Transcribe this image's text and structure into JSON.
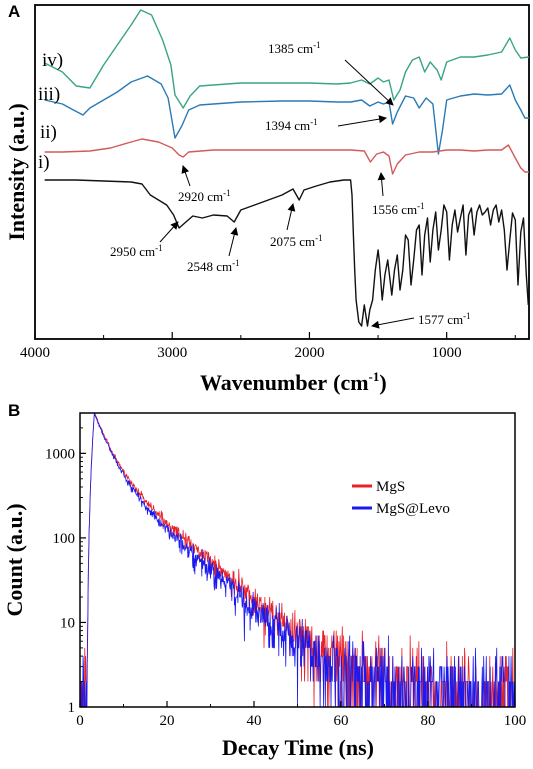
{
  "chart_data": [
    {
      "panel": "A",
      "type": "line",
      "xlabel": "Wavenumber",
      "xlabel_unit": "(cm",
      "xlabel_unit_sup": "-1",
      "xlabel_unit_end": ")",
      "ylabel": "Intensity (a.u.)",
      "xlim": [
        4000,
        400
      ],
      "x_reversed": true,
      "xticks": [
        4000,
        3000,
        2000,
        1000
      ],
      "grid": false,
      "series_labels": [
        "iv)",
        "iii)",
        "ii)",
        "i)"
      ],
      "series": [
        {
          "label": "iv)",
          "color": "#3aa389",
          "points": [
            [
              3930,
              63
            ],
            [
              3800,
              72
            ],
            [
              3700,
              86
            ],
            [
              3600,
              88
            ],
            [
              3500,
              65
            ],
            [
              3400,
              45
            ],
            [
              3300,
              25
            ],
            [
              3230,
              10
            ],
            [
              3150,
              15
            ],
            [
              3070,
              40
            ],
            [
              3010,
              65
            ],
            [
              2980,
              95
            ],
            [
              2920,
              108
            ],
            [
              2870,
              96
            ],
            [
              2800,
              86
            ],
            [
              2500,
              83
            ],
            [
              2200,
              83
            ],
            [
              2000,
              83
            ],
            [
              1800,
              84
            ],
            [
              1700,
              83
            ],
            [
              1620,
              80
            ],
            [
              1560,
              84
            ],
            [
              1500,
              78
            ],
            [
              1460,
              82
            ],
            [
              1420,
              80
            ],
            [
              1385,
              100
            ],
            [
              1340,
              90
            ],
            [
              1300,
              72
            ],
            [
              1250,
              60
            ],
            [
              1200,
              57
            ],
            [
              1160,
              72
            ],
            [
              1120,
              62
            ],
            [
              1070,
              70
            ],
            [
              1040,
              80
            ],
            [
              1000,
              62
            ],
            [
              900,
              57
            ],
            [
              800,
              57
            ],
            [
              700,
              55
            ],
            [
              600,
              52
            ],
            [
              540,
              38
            ],
            [
              500,
              50
            ],
            [
              460,
              58
            ],
            [
              400,
              57
            ]
          ]
        },
        {
          "label": "iii)",
          "color": "#2a7ab6",
          "points": [
            [
              3930,
              100
            ],
            [
              3800,
              104
            ],
            [
              3720,
              110
            ],
            [
              3650,
              115
            ],
            [
              3600,
              108
            ],
            [
              3500,
              100
            ],
            [
              3400,
              92
            ],
            [
              3300,
              82
            ],
            [
              3180,
              76
            ],
            [
              3080,
              84
            ],
            [
              3030,
              98
            ],
            [
              2980,
              138
            ],
            [
              2930,
              126
            ],
            [
              2880,
              110
            ],
            [
              2800,
              105
            ],
            [
              2500,
              102
            ],
            [
              2200,
              101
            ],
            [
              2000,
              101
            ],
            [
              1800,
              102
            ],
            [
              1700,
              102
            ],
            [
              1620,
              100
            ],
            [
              1560,
              106
            ],
            [
              1500,
              102
            ],
            [
              1460,
              104
            ],
            [
              1420,
              102
            ],
            [
              1394,
              124
            ],
            [
              1360,
              112
            ],
            [
              1300,
              96
            ],
            [
              1240,
              98
            ],
            [
              1200,
              108
            ],
            [
              1150,
              98
            ],
            [
              1100,
              104
            ],
            [
              1060,
              154
            ],
            [
              1030,
              130
            ],
            [
              1000,
              100
            ],
            [
              900,
              96
            ],
            [
              800,
              94
            ],
            [
              700,
              95
            ],
            [
              600,
              94
            ],
            [
              540,
              85
            ],
            [
              500,
              100
            ],
            [
              460,
              110
            ],
            [
              430,
              118
            ],
            [
              400,
              118
            ]
          ]
        },
        {
          "label": "ii)",
          "color": "#d35a5a",
          "points": [
            [
              3930,
              152
            ],
            [
              3800,
              152
            ],
            [
              3600,
              151
            ],
            [
              3450,
              148
            ],
            [
              3300,
              142
            ],
            [
              3220,
              139
            ],
            [
              3100,
              142
            ],
            [
              3000,
              148
            ],
            [
              2950,
              155
            ],
            [
              2920,
              157
            ],
            [
              2880,
              152
            ],
            [
              2700,
              150
            ],
            [
              2400,
              150
            ],
            [
              2100,
              150
            ],
            [
              1900,
              150
            ],
            [
              1700,
              150
            ],
            [
              1600,
              151
            ],
            [
              1556,
              162
            ],
            [
              1510,
              154
            ],
            [
              1460,
              152
            ],
            [
              1420,
              156
            ],
            [
              1394,
              174
            ],
            [
              1360,
              164
            ],
            [
              1300,
              155
            ],
            [
              1200,
              152
            ],
            [
              1100,
              152
            ],
            [
              1000,
              150
            ],
            [
              900,
              150
            ],
            [
              800,
              151
            ],
            [
              700,
              150
            ],
            [
              600,
              150
            ],
            [
              550,
              145
            ],
            [
              500,
              158
            ],
            [
              460,
              168
            ],
            [
              430,
              172
            ],
            [
              400,
              172
            ]
          ]
        },
        {
          "label": "i)",
          "color": "#111111",
          "points": [
            [
              3930,
              180
            ],
            [
              3700,
              180
            ],
            [
              3500,
              181
            ],
            [
              3300,
              182
            ],
            [
              3220,
              184
            ],
            [
              3160,
              195
            ],
            [
              3100,
              200
            ],
            [
              3040,
              205
            ],
            [
              2990,
              215
            ],
            [
              2950,
              228
            ],
            [
              2900,
              222
            ],
            [
              2850,
              216
            ],
            [
              2780,
              218
            ],
            [
              2700,
              215
            ],
            [
              2600,
              216
            ],
            [
              2548,
              222
            ],
            [
              2500,
              210
            ],
            [
              2400,
              205
            ],
            [
              2300,
              200
            ],
            [
              2200,
              195
            ],
            [
              2120,
              189
            ],
            [
              2075,
              200
            ],
            [
              2040,
              190
            ],
            [
              1950,
              186
            ],
            [
              1850,
              182
            ],
            [
              1750,
              180
            ],
            [
              1700,
              180
            ],
            [
              1690,
              195
            ],
            [
              1680,
              235
            ],
            [
              1670,
              270
            ],
            [
              1660,
              300
            ],
            [
              1640,
              322
            ],
            [
              1620,
              326
            ],
            [
              1600,
              305
            ],
            [
              1577,
              326
            ],
            [
              1560,
              310
            ],
            [
              1540,
              300
            ],
            [
              1520,
              270
            ],
            [
              1500,
              250
            ],
            [
              1490,
              262
            ],
            [
              1470,
              300
            ],
            [
              1450,
              275
            ],
            [
              1430,
              260
            ],
            [
              1400,
              295
            ],
            [
              1380,
              270
            ],
            [
              1360,
              255
            ],
            [
              1340,
              290
            ],
            [
              1320,
              270
            ],
            [
              1300,
              235
            ],
            [
              1280,
              240
            ],
            [
              1260,
              285
            ],
            [
              1240,
              260
            ],
            [
              1220,
              230
            ],
            [
              1200,
              225
            ],
            [
              1180,
              275
            ],
            [
              1160,
              235
            ],
            [
              1140,
              218
            ],
            [
              1120,
              262
            ],
            [
              1100,
              230
            ],
            [
              1080,
              212
            ],
            [
              1060,
              250
            ],
            [
              1040,
              230
            ],
            [
              1020,
              205
            ],
            [
              1000,
              212
            ],
            [
              980,
              260
            ],
            [
              960,
              225
            ],
            [
              940,
              210
            ],
            [
              920,
              232
            ],
            [
              900,
              218
            ],
            [
              880,
              205
            ],
            [
              860,
              255
            ],
            [
              840,
              215
            ],
            [
              820,
              208
            ],
            [
              800,
              235
            ],
            [
              780,
              212
            ],
            [
              760,
              205
            ],
            [
              740,
              215
            ],
            [
              720,
              212
            ],
            [
              700,
              208
            ],
            [
              680,
              225
            ],
            [
              660,
              210
            ],
            [
              640,
              205
            ],
            [
              620,
              222
            ],
            [
              600,
              210
            ],
            [
              580,
              230
            ],
            [
              560,
              270
            ],
            [
              540,
              240
            ],
            [
              520,
              213
            ],
            [
              500,
              220
            ],
            [
              480,
              285
            ],
            [
              460,
              232
            ],
            [
              440,
              218
            ],
            [
              420,
              275
            ],
            [
              405,
              305
            ]
          ]
        }
      ],
      "annotations": [
        {
          "text": "1385 cm",
          "sup": "-1"
        },
        {
          "text": "1394 cm",
          "sup": "-1"
        },
        {
          "text": "2920 cm",
          "sup": "-1"
        },
        {
          "text": "1556 cm",
          "sup": "-1"
        },
        {
          "text": "2950 cm",
          "sup": "-1"
        },
        {
          "text": "2548 cm",
          "sup": "-1"
        },
        {
          "text": "2075 cm",
          "sup": "-1"
        },
        {
          "text": "1577 cm",
          "sup": "-1"
        }
      ]
    },
    {
      "panel": "B",
      "type": "line",
      "xlabel": "Decay Time (ns)",
      "ylabel": "Count (a.u.)",
      "xlim": [
        0,
        100
      ],
      "ylim": [
        1,
        3000
      ],
      "yscale": "log",
      "xticks": [
        0,
        20,
        40,
        60,
        80,
        100
      ],
      "yticks": [
        1,
        10,
        100,
        1000
      ],
      "grid": false,
      "legend": "top-right",
      "series": [
        {
          "name": "MgS",
          "color": "#e8202a",
          "peak_ns": 3.3,
          "peak_count": 3000,
          "tau_ns": [
            2.8,
            9.5
          ],
          "weights": [
            0.72,
            0.28
          ]
        },
        {
          "name": "MgS@Levo",
          "color": "#1a1aee",
          "peak_ns": 3.3,
          "peak_count": 3000,
          "tau_ns": [
            2.7,
            9.0
          ],
          "weights": [
            0.74,
            0.26
          ]
        }
      ]
    }
  ]
}
